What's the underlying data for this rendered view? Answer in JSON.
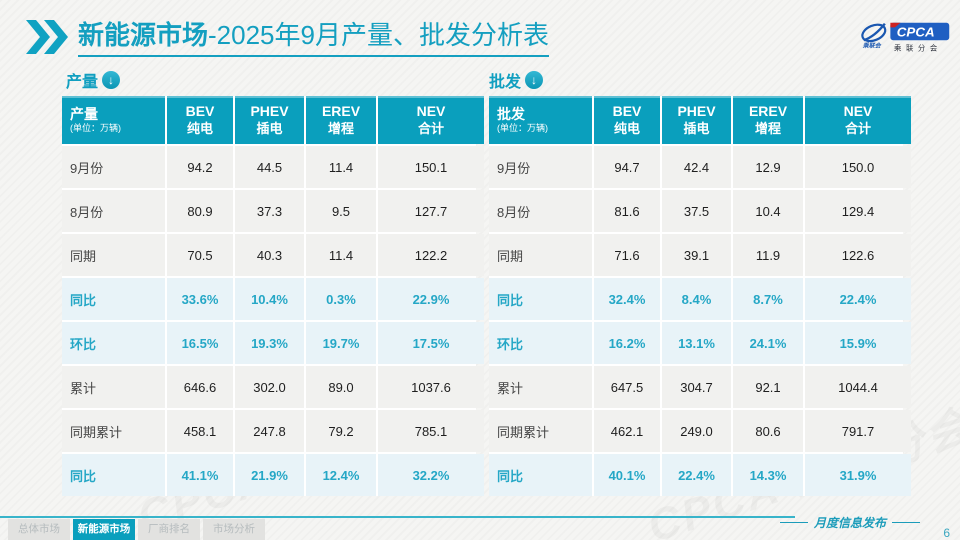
{
  "title": {
    "bold": "新能源市场",
    "rest": "-2025年9月产量、批发分析表"
  },
  "logo": {
    "cpca": "CPCA",
    "org": "乘联分会",
    "mark": "乘联会"
  },
  "section_labels": {
    "production": "产量",
    "wholesale": "批发"
  },
  "watermark": "CPCA 乘联分会",
  "colors": {
    "accent_teal": "#0a9fbd",
    "title_teal": "#149fc0",
    "percent_text": "#25a7c6",
    "percent_row_bg": "#e8f3f8",
    "row_bg": "#f1f1ef",
    "logo_blue": "#1a57b0"
  },
  "tables": [
    {
      "corner_label": "产量",
      "unit": "(单位：万辆)",
      "columns": [
        {
          "en": "BEV",
          "cn": "纯电"
        },
        {
          "en": "PHEV",
          "cn": "插电"
        },
        {
          "en": "EREV",
          "cn": "增程"
        },
        {
          "en": "NEV",
          "cn": "合计"
        }
      ],
      "rows": [
        {
          "label": "9月份",
          "type": "normal",
          "values": [
            "94.2",
            "44.5",
            "11.4",
            "150.1"
          ]
        },
        {
          "label": "8月份",
          "type": "normal",
          "values": [
            "80.9",
            "37.3",
            "9.5",
            "127.7"
          ]
        },
        {
          "label": "同期",
          "type": "normal",
          "values": [
            "70.5",
            "40.3",
            "11.4",
            "122.2"
          ]
        },
        {
          "label": "同比",
          "type": "percent",
          "values": [
            "33.6%",
            "10.4%",
            "0.3%",
            "22.9%"
          ]
        },
        {
          "label": "环比",
          "type": "percent",
          "values": [
            "16.5%",
            "19.3%",
            "19.7%",
            "17.5%"
          ]
        },
        {
          "label": "累计",
          "type": "normal",
          "values": [
            "646.6",
            "302.0",
            "89.0",
            "1037.6"
          ]
        },
        {
          "label": "同期累计",
          "type": "normal",
          "values": [
            "458.1",
            "247.8",
            "79.2",
            "785.1"
          ]
        },
        {
          "label": "同比",
          "type": "percent",
          "values": [
            "41.1%",
            "21.9%",
            "12.4%",
            "32.2%"
          ]
        }
      ]
    },
    {
      "corner_label": "批发",
      "unit": "(单位：万辆)",
      "columns": [
        {
          "en": "BEV",
          "cn": "纯电"
        },
        {
          "en": "PHEV",
          "cn": "插电"
        },
        {
          "en": "EREV",
          "cn": "增程"
        },
        {
          "en": "NEV",
          "cn": "合计"
        }
      ],
      "rows": [
        {
          "label": "9月份",
          "type": "normal",
          "values": [
            "94.7",
            "42.4",
            "12.9",
            "150.0"
          ]
        },
        {
          "label": "8月份",
          "type": "normal",
          "values": [
            "81.6",
            "37.5",
            "10.4",
            "129.4"
          ]
        },
        {
          "label": "同期",
          "type": "normal",
          "values": [
            "71.6",
            "39.1",
            "11.9",
            "122.6"
          ]
        },
        {
          "label": "同比",
          "type": "percent",
          "values": [
            "32.4%",
            "8.4%",
            "8.7%",
            "22.4%"
          ]
        },
        {
          "label": "环比",
          "type": "percent",
          "values": [
            "16.2%",
            "13.1%",
            "24.1%",
            "15.9%"
          ]
        },
        {
          "label": "累计",
          "type": "normal",
          "values": [
            "647.5",
            "304.7",
            "92.1",
            "1044.4"
          ]
        },
        {
          "label": "同期累计",
          "type": "normal",
          "values": [
            "462.1",
            "249.0",
            "80.6",
            "791.7"
          ]
        },
        {
          "label": "同比",
          "type": "percent",
          "values": [
            "40.1%",
            "22.4%",
            "14.3%",
            "31.9%"
          ]
        }
      ]
    }
  ],
  "footer": {
    "tabs": [
      {
        "label": "总体市场",
        "active": false
      },
      {
        "label": "新能源市场",
        "active": true
      },
      {
        "label": "厂商排名",
        "active": false
      },
      {
        "label": "市场分析",
        "active": false
      }
    ],
    "publication": "月度信息发布",
    "page_number": "6"
  }
}
